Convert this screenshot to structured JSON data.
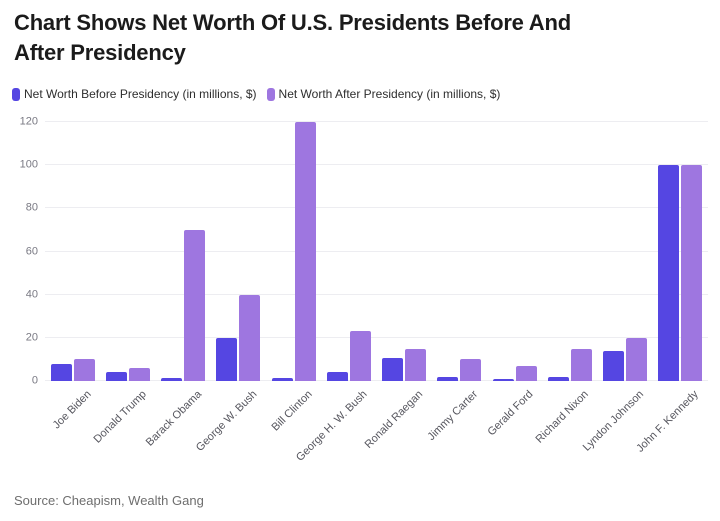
{
  "header": {
    "title": "Chart Shows Net Worth Of U.S. Presidents Before And After Presidency",
    "title_lines": [
      "Chart Shows Net Worth Of U.S. Presidents Before And",
      "After Presidency"
    ]
  },
  "chart_data": {
    "type": "bar",
    "title": "Chart Shows Net Worth Of U.S. Presidents Before And After Presidency",
    "categories": [
      "Joe Biden",
      "Donald Trump",
      "Barack Obama",
      "George W. Bush",
      "Bill Clinton",
      "George H. W. Bush",
      "Ronald Raegan",
      "Jimmy Carter",
      "Gerald Ford",
      "Richard Nixon",
      "Lyndon Johnson",
      "John F. Kennedy"
    ],
    "series": [
      {
        "name": "Net Worth Before Presidency (in millions, $)",
        "color": "#5546e2",
        "values": [
          8,
          4,
          1.3,
          20,
          1.3,
          4,
          10.5,
          2,
          1,
          2,
          14,
          100
        ]
      },
      {
        "name": "Net Worth After Presidency (in millions, $)",
        "color": "#9e76e0",
        "values": [
          10,
          6,
          70,
          40,
          120,
          23,
          15,
          10,
          7,
          15,
          20,
          100
        ]
      }
    ],
    "xlabel": "",
    "ylabel": "",
    "ylim": [
      0,
      120
    ],
    "yticks": [
      0,
      20,
      40,
      60,
      80,
      100,
      120
    ],
    "grid": true,
    "legend_position": "top-left"
  },
  "footer": {
    "source": "Source: Cheapism, Wealth Gang"
  },
  "colors": {
    "grid": "#ededf1",
    "y_tick_label": "#797983",
    "x_tick_label": "#56565e",
    "title": "#1b1b1b",
    "source": "#6e6e6e",
    "background": "#ffffff"
  }
}
